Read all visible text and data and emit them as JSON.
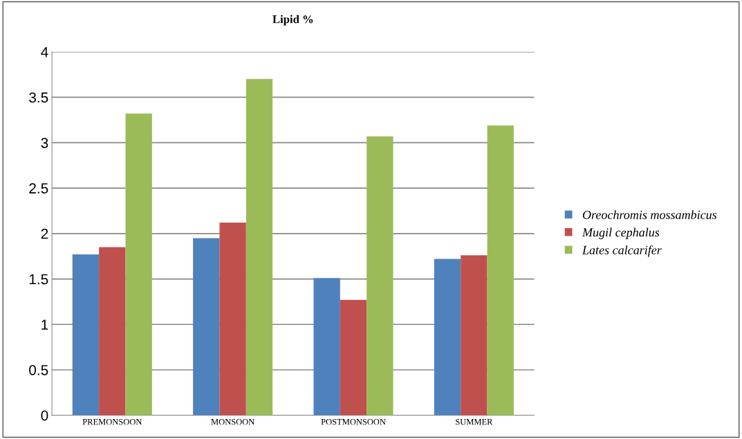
{
  "chart_data": {
    "type": "bar",
    "title": "Lipid %",
    "categories": [
      "PREMONSOON",
      "MONSOON",
      "POSTMONSOON",
      "SUMMER"
    ],
    "series": [
      {
        "name": "Oreochromis mossambicus",
        "color": "#4f81bd",
        "values": [
          1.77,
          1.95,
          1.51,
          1.72
        ]
      },
      {
        "name": "Mugil cephalus",
        "color": "#c0504d",
        "values": [
          1.85,
          2.12,
          1.27,
          1.76
        ]
      },
      {
        "name": "Lates calcarifer",
        "color": "#9bbb59",
        "values": [
          3.32,
          3.7,
          3.07,
          3.19
        ]
      }
    ],
    "ylim": [
      0,
      4
    ],
    "yticks": [
      0,
      0.5,
      1,
      1.5,
      2,
      2.5,
      3,
      3.5,
      4
    ],
    "grid": "y",
    "legend": "right"
  }
}
